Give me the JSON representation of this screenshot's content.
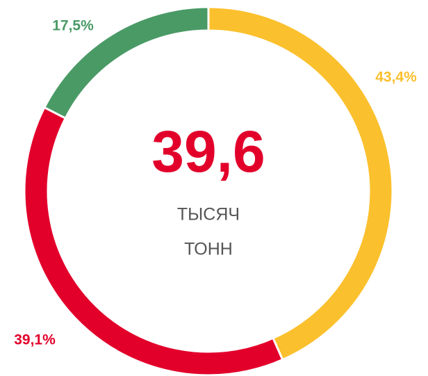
{
  "chart_data": {
    "type": "pie",
    "values": [
      43.4,
      39.1,
      17.5
    ],
    "value_labels": [
      "43,4%",
      "39,1%",
      "17,5%"
    ],
    "colors": [
      "#fbc02d",
      "#e2002b",
      "#4a9a66"
    ],
    "center_text": "39,6",
    "center_lines": [
      "ТЫСЯЧ",
      "ТОНН"
    ]
  }
}
